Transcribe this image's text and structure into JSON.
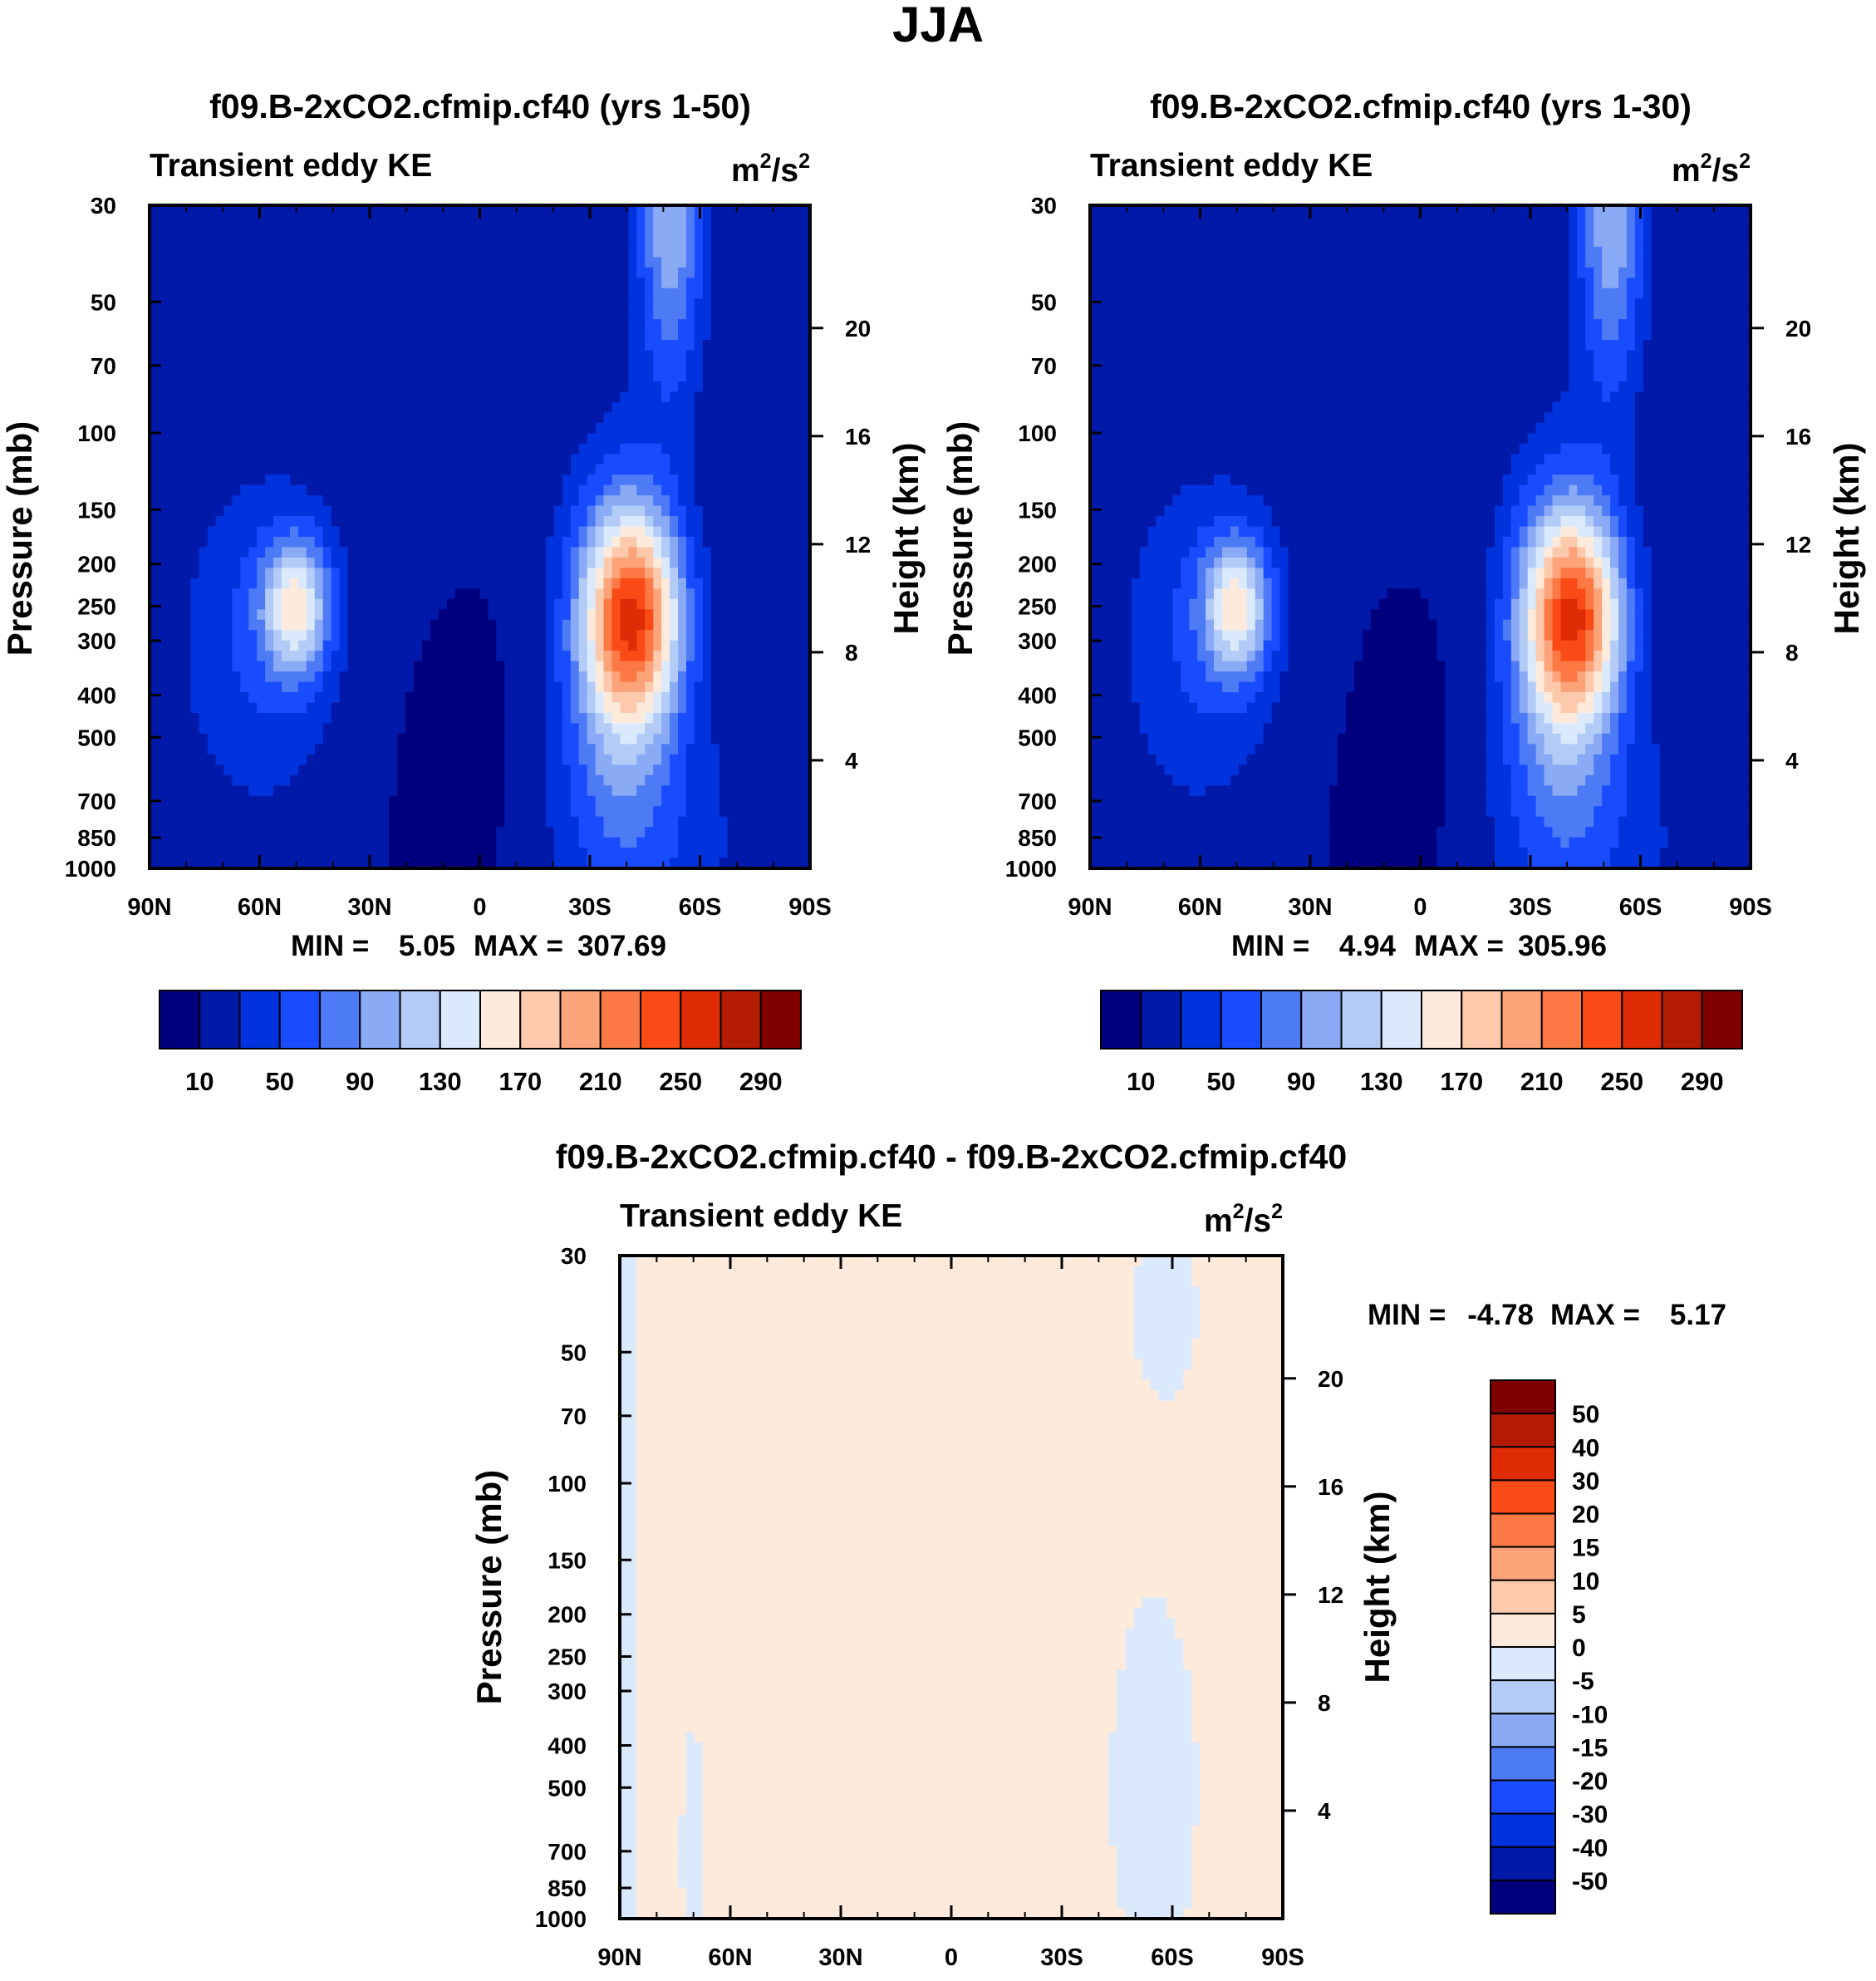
{
  "figure": {
    "title": "JJA",
    "colors": {
      "absolute": [
        "#00007f",
        "#0019a9",
        "#0033dd",
        "#1a4cff",
        "#4d7af5",
        "#8aaaf5",
        "#b3cbf7",
        "#dae9fb",
        "#fdeadb",
        "#fcc9ad",
        "#fca37a",
        "#fc7845",
        "#fa4b17",
        "#e02c06",
        "#b31b05",
        "#800000"
      ],
      "difference": [
        "#00007f",
        "#0019a9",
        "#0033dd",
        "#1a4cff",
        "#4d7af5",
        "#8aaaf5",
        "#b3cbf7",
        "#dae9fb",
        "#fdeadb",
        "#fcc9ad",
        "#fca37a",
        "#fc7845",
        "#fa4b17",
        "#e02c06",
        "#b31b05",
        "#800000"
      ]
    }
  },
  "chart_data": [
    {
      "type": "heatmap",
      "title": "f09.B-2xCO2.cfmip.cf40 (yrs 1-50)",
      "subtitle_left": "Transient eddy KE",
      "units": {
        "base": "m",
        "sup1": "2",
        "mid": "/s",
        "sup2": "2"
      },
      "xlabel": "",
      "ylabel": "Pressure (mb)",
      "ylabel_right": "Height (km)",
      "x_ticks": [
        "90N",
        "60N",
        "30N",
        "0",
        "30S",
        "60S",
        "90S"
      ],
      "y_ticks": [
        "30",
        "50",
        "70",
        "100",
        "150",
        "200",
        "250",
        "300",
        "400",
        "500",
        "700",
        "850",
        "1000"
      ],
      "y2_ticks": [
        "20",
        "16",
        "12",
        "8",
        "4"
      ],
      "min_label": "MIN =",
      "min_value": "5.05",
      "max_label": "MAX =",
      "max_value": "307.69",
      "levels": [
        10,
        30,
        50,
        70,
        90,
        110,
        130,
        150,
        170,
        190,
        210,
        230,
        250,
        270,
        290
      ],
      "colorbar_labels": [
        "10",
        "50",
        "90",
        "130",
        "170",
        "210",
        "250",
        "290"
      ],
      "field_scale": 1.0,
      "stats": {
        "min": 5.05,
        "max": 307.69
      }
    },
    {
      "type": "heatmap",
      "title": "f09.B-2xCO2.cfmip.cf40 (yrs 1-30)",
      "subtitle_left": "Transient eddy KE",
      "units": {
        "base": "m",
        "sup1": "2",
        "mid": "/s",
        "sup2": "2"
      },
      "xlabel": "",
      "ylabel": "Pressure (mb)",
      "ylabel_right": "Height (km)",
      "x_ticks": [
        "90N",
        "60N",
        "30N",
        "0",
        "30S",
        "60S",
        "90S"
      ],
      "y_ticks": [
        "30",
        "50",
        "70",
        "100",
        "150",
        "200",
        "250",
        "300",
        "400",
        "500",
        "700",
        "850",
        "1000"
      ],
      "y2_ticks": [
        "20",
        "16",
        "12",
        "8",
        "4"
      ],
      "min_label": "MIN =",
      "min_value": "4.94",
      "max_label": "MAX =",
      "max_value": "305.96",
      "levels": [
        10,
        30,
        50,
        70,
        90,
        110,
        130,
        150,
        170,
        190,
        210,
        230,
        250,
        270,
        290
      ],
      "colorbar_labels": [
        "10",
        "50",
        "90",
        "130",
        "170",
        "210",
        "250",
        "290"
      ],
      "field_scale": 0.994,
      "stats": {
        "min": 4.94,
        "max": 305.96
      }
    },
    {
      "type": "heatmap",
      "title": "f09.B-2xCO2.cfmip.cf40 - f09.B-2xCO2.cfmip.cf40",
      "subtitle_left": "Transient eddy KE",
      "units": {
        "base": "m",
        "sup1": "2",
        "mid": "/s",
        "sup2": "2"
      },
      "xlabel": "",
      "ylabel": "Pressure (mb)",
      "ylabel_right": "Height (km)",
      "x_ticks": [
        "90N",
        "60N",
        "30N",
        "0",
        "30S",
        "60S",
        "90S"
      ],
      "y_ticks": [
        "30",
        "50",
        "70",
        "100",
        "150",
        "200",
        "250",
        "300",
        "400",
        "500",
        "700",
        "850",
        "1000"
      ],
      "y2_ticks": [
        "20",
        "16",
        "12",
        "8",
        "4"
      ],
      "min_label": "MIN =",
      "min_value": "-4.78",
      "max_label": "MAX =",
      "max_value": "5.17",
      "levels": [
        -50,
        -40,
        -30,
        -20,
        -15,
        -10,
        -5,
        0,
        5,
        10,
        15,
        20,
        30,
        40,
        50
      ],
      "colorbar_labels": [
        "50",
        "40",
        "30",
        "20",
        "15",
        "10",
        "5",
        "0",
        "-5",
        "-10",
        "-15",
        "-20",
        "-30",
        "-40",
        "-50"
      ],
      "stats": {
        "min": -4.78,
        "max": 5.17
      }
    }
  ]
}
